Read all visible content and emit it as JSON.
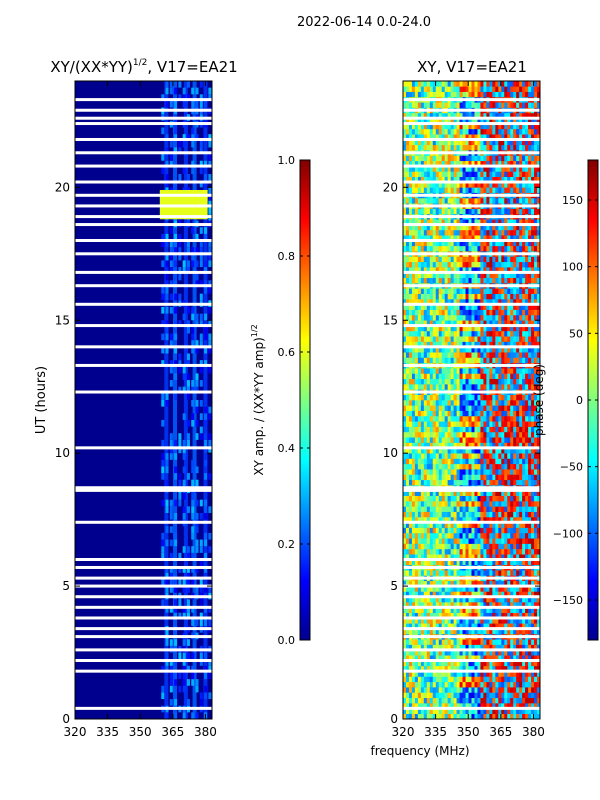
{
  "suptitle": "2022-06-14 0.0-24.0",
  "shared_xlabel": "frequency (MHz)",
  "colors": {
    "background": "#00008f",
    "gap": "#ffffff"
  },
  "chart_data": [
    {
      "type": "heatmap",
      "title_main": "XY/(XX*YY)",
      "title_exp": "1/2",
      "title_suffix": ", V17=EA21",
      "ylabel": "UT (hours)",
      "xlim": [
        320,
        383
      ],
      "ylim": [
        0,
        24
      ],
      "xticks": [
        320,
        335,
        350,
        365,
        380
      ],
      "yticks": [
        0,
        5,
        10,
        15,
        20
      ],
      "colorbar": {
        "label_main": "XY amp. / (XX*YY amp)",
        "label_exp": "1/2",
        "range": [
          0.0,
          1.0
        ],
        "ticks": [
          "0.0",
          "0.2",
          "0.4",
          "0.6",
          "0.8",
          "1.0"
        ],
        "colormap": "jet"
      },
      "gap_hours": [
        0.4,
        1.8,
        2.2,
        2.6,
        3.1,
        3.4,
        3.8,
        4.2,
        4.6,
        5.0,
        5.3,
        5.7,
        6.0,
        7.4,
        8.6,
        8.7,
        10.2,
        12.3,
        13.3,
        14.0,
        14.8,
        15.6,
        16.3,
        16.8,
        17.5,
        18.0,
        18.6,
        18.9,
        19.3,
        19.7,
        20.2,
        20.8,
        21.3,
        21.8,
        22.4,
        22.6,
        22.9,
        23.3
      ],
      "bright_bands_mhz": [
        362,
        366,
        371,
        375,
        380
      ],
      "hotspot": {
        "freq_mhz": [
          359,
          381
        ],
        "hours": [
          18.8,
          19.9
        ],
        "value": 0.6
      }
    },
    {
      "type": "heatmap",
      "title": "XY, V17=EA21",
      "xlim": [
        320,
        383
      ],
      "ylim": [
        0,
        24
      ],
      "xticks": [
        320,
        335,
        350,
        365,
        380
      ],
      "yticks": [
        0,
        5,
        10,
        15,
        20
      ],
      "colorbar": {
        "label": "phase (deg)",
        "range": [
          -180,
          180
        ],
        "ticks": [
          "-150",
          "-100",
          "-50",
          "0",
          "50",
          "100",
          "150"
        ],
        "colormap": "jet"
      },
      "gap_hours": [
        0.4,
        1.8,
        2.2,
        2.6,
        3.1,
        3.4,
        3.8,
        4.2,
        4.6,
        5.0,
        5.3,
        5.7,
        6.0,
        7.4,
        8.6,
        8.7,
        10.2,
        12.3,
        13.3,
        14.0,
        14.8,
        15.6,
        16.3,
        16.8,
        17.5,
        18.0,
        18.6,
        18.9,
        19.3,
        19.7,
        20.2,
        20.8,
        21.3,
        21.8,
        22.4,
        22.6,
        22.9,
        23.3
      ]
    }
  ]
}
